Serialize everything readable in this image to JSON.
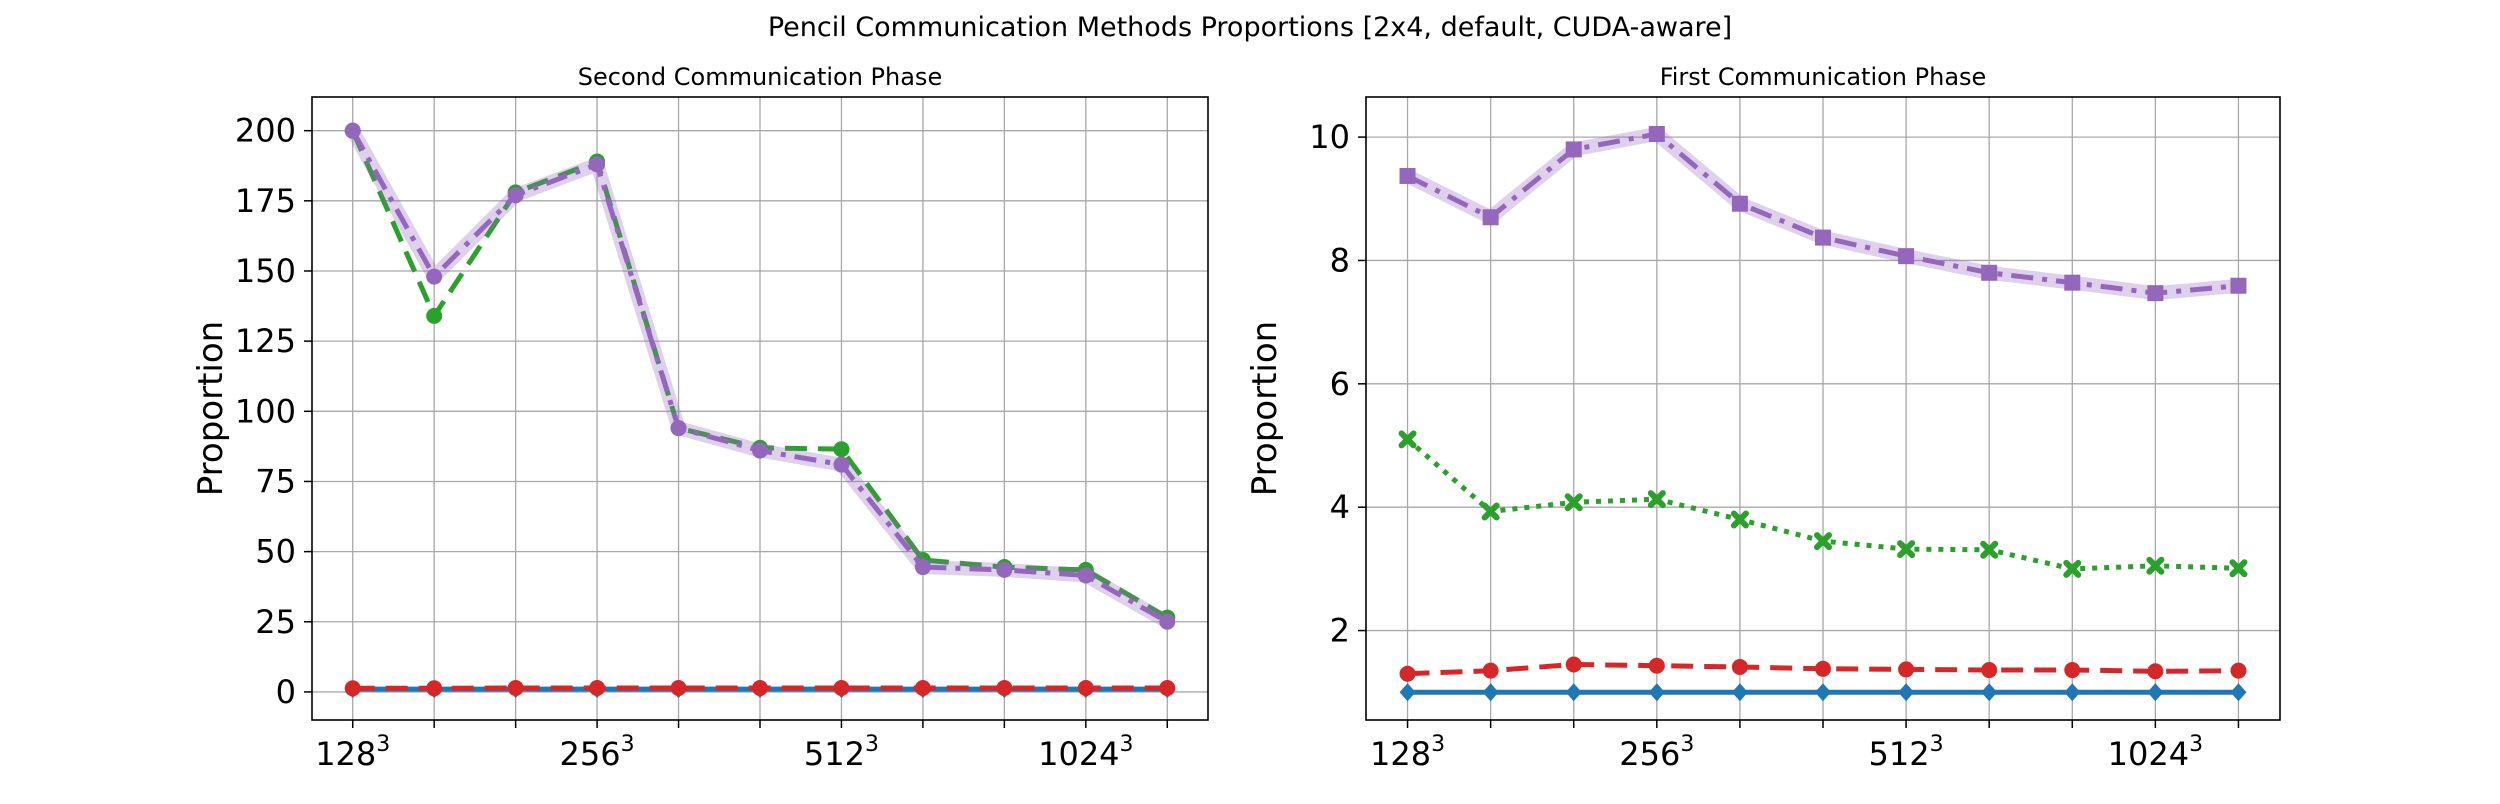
{
  "figure_title": "Pencil Communication Methods Proportions [2x4, default, CUDA-aware]",
  "chart_data": [
    {
      "type": "line",
      "title": "Second Communication Phase",
      "xlabel": "",
      "ylabel": "Proportion",
      "x": [
        1,
        2,
        3,
        4,
        5,
        6,
        7,
        8,
        9,
        10,
        11
      ],
      "xticks": [
        1,
        4,
        7,
        10
      ],
      "xtick_labels": [
        "128",
        "256",
        "512",
        "1024"
      ],
      "xtick_exponent": "3",
      "ylim": [
        -10,
        212
      ],
      "yticks": [
        0,
        25,
        50,
        75,
        100,
        125,
        150,
        175,
        200
      ],
      "grid": true,
      "series": [
        {
          "name": "blue",
          "color": "#1f77b4",
          "dash": "none",
          "marker": "diamond",
          "values": [
            1,
            1,
            1,
            1,
            1,
            1,
            1,
            1,
            1,
            1,
            1
          ]
        },
        {
          "name": "red",
          "color": "#d62728",
          "dash": "dashed",
          "marker": "circle",
          "values": [
            1.3,
            1.3,
            1.4,
            1.4,
            1.4,
            1.4,
            1.4,
            1.4,
            1.4,
            1.4,
            1.4
          ]
        },
        {
          "name": "green",
          "color": "#2ca02c",
          "dash": "dashed",
          "marker": "circle",
          "values": [
            200,
            134,
            178,
            189,
            94,
            87,
            86.5,
            47,
            44.5,
            43.5,
            26.5
          ]
        },
        {
          "name": "purple",
          "color": "#9467bd",
          "dash": "dashdot",
          "marker": "circle",
          "values": [
            200,
            148,
            177,
            188,
            94,
            86,
            81,
            44.5,
            43.5,
            41.5,
            25
          ]
        }
      ]
    },
    {
      "type": "line",
      "title": "First Communication Phase",
      "xlabel": "",
      "ylabel": "Proportion",
      "x": [
        1,
        2,
        3,
        4,
        5,
        6,
        7,
        8,
        9,
        10,
        11
      ],
      "xticks": [
        1,
        4,
        7,
        10
      ],
      "xtick_labels": [
        "128",
        "256",
        "512",
        "1024"
      ],
      "xtick_exponent": "3",
      "ylim": [
        0.55,
        10.65
      ],
      "yticks": [
        2,
        4,
        6,
        8,
        10
      ],
      "grid": true,
      "series": [
        {
          "name": "blue",
          "color": "#1f77b4",
          "dash": "none",
          "marker": "diamond",
          "values": [
            1,
            1,
            1,
            1,
            1,
            1,
            1,
            1,
            1,
            1,
            1
          ]
        },
        {
          "name": "red",
          "color": "#d62728",
          "dash": "dashed",
          "marker": "circle",
          "values": [
            1.3,
            1.35,
            1.45,
            1.43,
            1.41,
            1.38,
            1.37,
            1.36,
            1.36,
            1.34,
            1.35
          ]
        },
        {
          "name": "green",
          "color": "#2ca02c",
          "dash": "dotted",
          "marker": "x",
          "values": [
            5.1,
            3.93,
            4.08,
            4.13,
            3.8,
            3.45,
            3.32,
            3.31,
            3.0,
            3.05,
            3.01
          ]
        },
        {
          "name": "purple",
          "color": "#9467bd",
          "dash": "dashdot",
          "marker": "square",
          "values": [
            9.37,
            8.7,
            9.8,
            10.05,
            8.92,
            8.37,
            8.07,
            7.8,
            7.64,
            7.47,
            7.59
          ]
        }
      ]
    }
  ]
}
